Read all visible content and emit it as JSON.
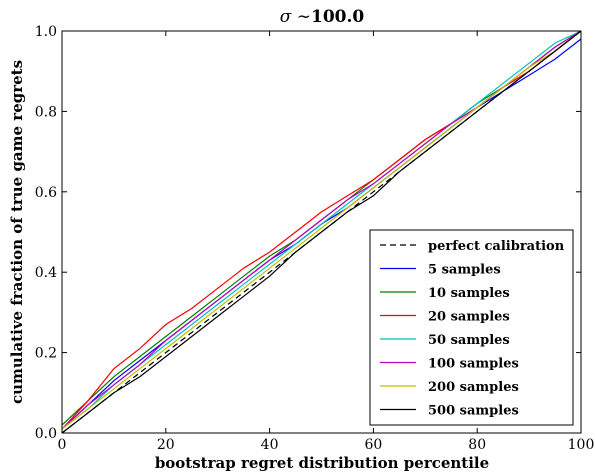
{
  "chart_data": {
    "type": "line",
    "title_prefix": "σ ∼",
    "title_value": "100.0",
    "xlabel": "bootstrap regret distribution percentile",
    "ylabel": "cumulative fraction of true game regrets",
    "xlim": [
      0,
      100
    ],
    "ylim": [
      0.0,
      1.0
    ],
    "xticks": [
      0,
      20,
      40,
      60,
      80,
      100
    ],
    "xtick_labels": [
      "0",
      "20",
      "40",
      "60",
      "80",
      "100"
    ],
    "yticks": [
      0.0,
      0.2,
      0.4,
      0.6,
      0.8,
      1.0
    ],
    "ytick_labels": [
      "0.0",
      "0.2",
      "0.4",
      "0.6",
      "0.8",
      "1.0"
    ],
    "grid": false,
    "legend_position": "lower-right",
    "series": [
      {
        "name": "perfect calibration",
        "color": "#000000",
        "dashed": true,
        "x": [
          0,
          100
        ],
        "y": [
          0.0,
          1.0
        ]
      },
      {
        "name": "5 samples",
        "color": "#0000ff",
        "x": [
          0,
          5,
          10,
          15,
          20,
          25,
          30,
          35,
          40,
          45,
          50,
          55,
          60,
          65,
          70,
          75,
          80,
          85,
          90,
          95,
          100
        ],
        "y": [
          0.01,
          0.07,
          0.13,
          0.18,
          0.23,
          0.28,
          0.33,
          0.38,
          0.43,
          0.47,
          0.52,
          0.56,
          0.61,
          0.66,
          0.71,
          0.76,
          0.81,
          0.85,
          0.89,
          0.93,
          0.98
        ]
      },
      {
        "name": "10 samples",
        "color": "#008000",
        "x": [
          0,
          5,
          10,
          15,
          20,
          25,
          30,
          35,
          40,
          45,
          50,
          55,
          60,
          65,
          70,
          75,
          80,
          85,
          90,
          95,
          100
        ],
        "y": [
          0.02,
          0.08,
          0.14,
          0.19,
          0.24,
          0.29,
          0.34,
          0.39,
          0.44,
          0.48,
          0.53,
          0.58,
          0.63,
          0.68,
          0.73,
          0.77,
          0.82,
          0.86,
          0.91,
          0.96,
          1.0
        ]
      },
      {
        "name": "20 samples",
        "color": "#ff0000",
        "x": [
          0,
          5,
          10,
          15,
          20,
          25,
          30,
          35,
          40,
          45,
          50,
          55,
          60,
          65,
          70,
          75,
          80,
          85,
          90,
          95,
          100
        ],
        "y": [
          0.01,
          0.08,
          0.16,
          0.21,
          0.27,
          0.31,
          0.36,
          0.41,
          0.45,
          0.5,
          0.55,
          0.59,
          0.63,
          0.68,
          0.73,
          0.77,
          0.81,
          0.86,
          0.9,
          0.95,
          1.0
        ]
      },
      {
        "name": "50 samples",
        "color": "#00bfbf",
        "x": [
          0,
          5,
          10,
          15,
          20,
          25,
          30,
          35,
          40,
          45,
          50,
          55,
          60,
          65,
          70,
          75,
          80,
          85,
          90,
          95,
          100
        ],
        "y": [
          0.01,
          0.06,
          0.12,
          0.17,
          0.22,
          0.27,
          0.32,
          0.37,
          0.42,
          0.47,
          0.52,
          0.57,
          0.62,
          0.67,
          0.72,
          0.77,
          0.82,
          0.87,
          0.92,
          0.97,
          1.0
        ]
      },
      {
        "name": "100 samples",
        "color": "#bf00bf",
        "x": [
          0,
          5,
          10,
          15,
          20,
          25,
          30,
          35,
          40,
          45,
          50,
          55,
          60,
          65,
          70,
          75,
          80,
          85,
          90,
          95,
          100
        ],
        "y": [
          0.01,
          0.07,
          0.12,
          0.17,
          0.23,
          0.28,
          0.33,
          0.38,
          0.43,
          0.48,
          0.53,
          0.58,
          0.62,
          0.67,
          0.72,
          0.77,
          0.81,
          0.86,
          0.91,
          0.96,
          1.0
        ]
      },
      {
        "name": "200 samples",
        "color": "#bfbf00",
        "x": [
          0,
          5,
          10,
          15,
          20,
          25,
          30,
          35,
          40,
          45,
          50,
          55,
          60,
          65,
          70,
          75,
          80,
          85,
          90,
          95,
          100
        ],
        "y": [
          0.01,
          0.06,
          0.11,
          0.16,
          0.21,
          0.26,
          0.31,
          0.36,
          0.41,
          0.46,
          0.51,
          0.56,
          0.61,
          0.66,
          0.71,
          0.76,
          0.81,
          0.86,
          0.91,
          0.95,
          1.0
        ]
      },
      {
        "name": "500 samples",
        "color": "#000000",
        "x": [
          0,
          5,
          10,
          15,
          20,
          25,
          30,
          35,
          40,
          45,
          50,
          55,
          60,
          65,
          70,
          75,
          80,
          85,
          90,
          95,
          100
        ],
        "y": [
          0.0,
          0.05,
          0.1,
          0.14,
          0.19,
          0.24,
          0.29,
          0.34,
          0.39,
          0.45,
          0.5,
          0.55,
          0.59,
          0.65,
          0.7,
          0.75,
          0.8,
          0.85,
          0.9,
          0.95,
          1.0
        ]
      }
    ]
  }
}
